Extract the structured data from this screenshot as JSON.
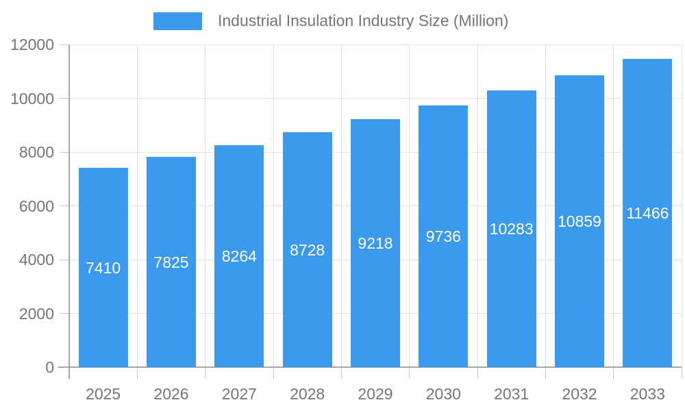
{
  "chart_data": {
    "type": "bar",
    "title": "Industrial Insulation Industry Size (Million)",
    "categories": [
      "2025",
      "2026",
      "2027",
      "2028",
      "2029",
      "2030",
      "2031",
      "2032",
      "2033"
    ],
    "values": [
      7410,
      7825,
      8264,
      8728,
      9218,
      9736,
      10283,
      10859,
      11466
    ],
    "yticks": [
      0,
      2000,
      4000,
      6000,
      8000,
      10000,
      12000
    ],
    "ylim": [
      0,
      12000
    ],
    "xlabel": "",
    "ylabel": "",
    "grid": true,
    "legend_position": "top",
    "bar_labels": "inside-center-white"
  },
  "colors": {
    "bar": "#3B9AEE",
    "bar_label": "#FFFFFF",
    "text": "#757575",
    "axis_line": "#A6A6A6",
    "grid_line": "#E2E2E2",
    "tick_line": "#C6C6C6",
    "background": "#FFFFFF"
  }
}
